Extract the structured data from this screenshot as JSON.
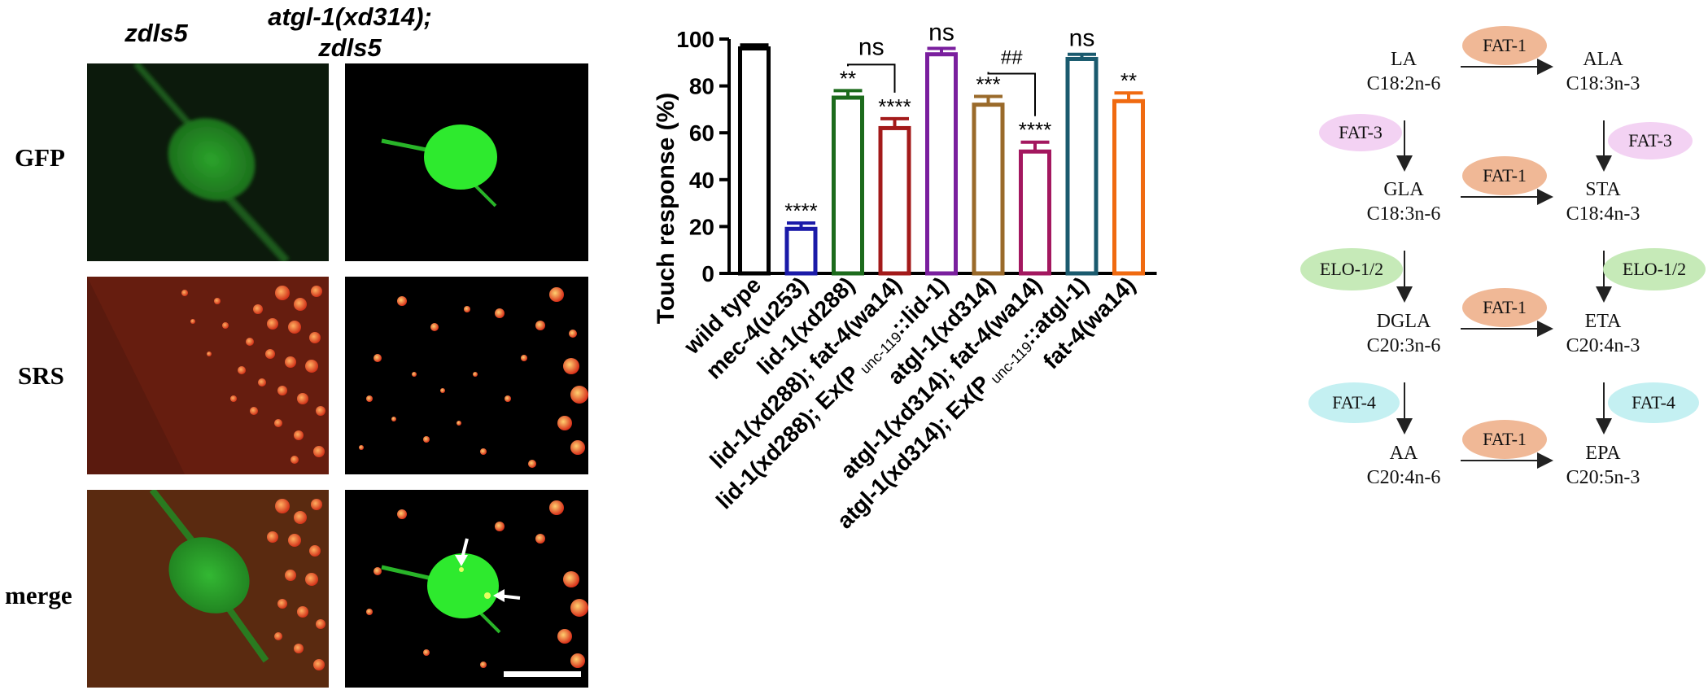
{
  "panel_a": {
    "columns": [
      "zdls5",
      "atgl-1(xd314);\nzdls5"
    ],
    "rows": [
      "GFP",
      "SRS",
      "merge"
    ]
  },
  "chart_data": {
    "type": "bar",
    "ylabel": "Touch response (%)",
    "ylim": [
      0,
      100
    ],
    "yticks": [
      "0",
      "20",
      "40",
      "60",
      "80",
      "100"
    ],
    "categories": [
      {
        "name": "wild type",
        "value": 96,
        "err": 1.5,
        "sig": "",
        "color": "#000000"
      },
      {
        "name": "mec-4(u253)",
        "value": 19,
        "err": 2.5,
        "sig": "****",
        "color": "#1a1aa8"
      },
      {
        "name": "lid-1(xd288)",
        "value": 75,
        "err": 3,
        "sig": "**",
        "color": "#1c6b1c"
      },
      {
        "name": "lid-1(xd288); fat-4(wa14)",
        "value": 62,
        "err": 4,
        "sig": "****",
        "color": "#a31a1a"
      },
      {
        "name": "lid-1(xd288); Ex(Punc-119::lid-1)",
        "value": 93.5,
        "err": 2.5,
        "sig": "ns",
        "color": "#7a1f9e"
      },
      {
        "name": "atgl-1(xd314)",
        "value": 72,
        "err": 3.5,
        "sig": "***",
        "color": "#9a6a2a"
      },
      {
        "name": "atgl-1(xd314); fat-4(wa14)",
        "value": 52,
        "err": 4,
        "sig": "****",
        "color": "#a3175f"
      },
      {
        "name": "atgl-1(xd314); Ex(Punc-119::atgl-1)",
        "value": 91.5,
        "err": 2,
        "sig": "ns",
        "color": "#1a5a6e"
      },
      {
        "name": "fat-4(wa14)",
        "value": 73.5,
        "err": 3.5,
        "sig": "**",
        "color": "#f06a10"
      }
    ],
    "comparisons": [
      {
        "from": 2,
        "to": 3,
        "label": "ns"
      },
      {
        "from": 5,
        "to": 6,
        "label": "##"
      }
    ],
    "label_parts": [
      {
        "pre": "wild type"
      },
      {
        "pre": "mec-4(u253)"
      },
      {
        "pre": "lid-1(xd288)"
      },
      {
        "pre": "lid-1(xd288); fat-4(wa14)"
      },
      {
        "pre": "lid-1(xd288); Ex(P",
        "sub": "unc-119",
        "post": "::lid-1)"
      },
      {
        "pre": "atgl-1(xd314)"
      },
      {
        "pre": "atgl-1(xd314); fat-4(wa14)"
      },
      {
        "pre": "atgl-1(xd314); Ex(P",
        "sub": "unc-119",
        "post": "::atgl-1)"
      },
      {
        "pre": "fat-4(wa14)"
      }
    ]
  },
  "pathway": {
    "left": [
      {
        "name": "LA",
        "formula": "C18:2n-6"
      },
      {
        "name": "GLA",
        "formula": "C18:3n-6"
      },
      {
        "name": "DGLA",
        "formula": "C20:3n-6"
      },
      {
        "name": "AA",
        "formula": "C20:4n-6"
      }
    ],
    "right": [
      {
        "name": "ALA",
        "formula": "C18:3n-3"
      },
      {
        "name": "STA",
        "formula": "C18:4n-3"
      },
      {
        "name": "ETA",
        "formula": "C20:4n-3"
      },
      {
        "name": "EPA",
        "formula": "C20:5n-3"
      }
    ],
    "enzymes": {
      "fat1": "FAT-1",
      "fat3": "FAT-3",
      "elo": "ELO-1/2",
      "fat4": "FAT-4"
    },
    "colors": {
      "fat1": "#f0b896",
      "fat3": "#f3d2f3",
      "elo": "#c6eab8",
      "fat4": "#c4f0f2"
    }
  }
}
